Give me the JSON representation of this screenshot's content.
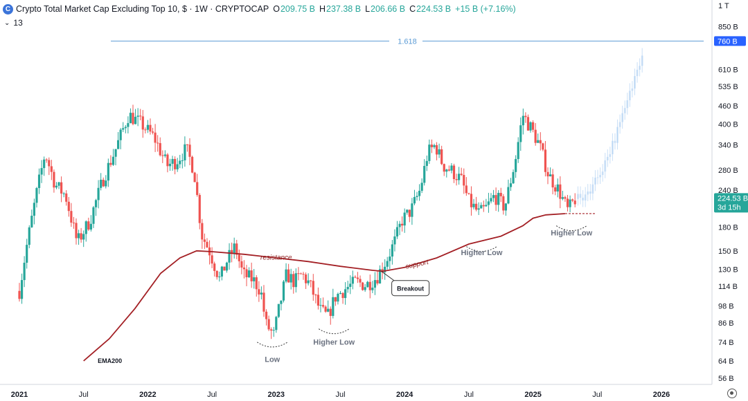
{
  "header": {
    "logo_glyph": "C",
    "title": "Crypto Total Market Cap Excluding Top 10, $ · 1W · CRYPTOCAP",
    "open_label": "O",
    "open_value": "209.75 B",
    "high_label": "H",
    "high_value": "237.38 B",
    "low_label": "L",
    "low_value": "206.66 B",
    "close_label": "C",
    "close_value": "224.53 B",
    "change": "+15 B (+7.16%)",
    "change_color": "#26a69a"
  },
  "indicator": {
    "chevron": "⌄",
    "count": "13"
  },
  "chart_data": {
    "type": "candlestick",
    "title": "Crypto Total Market Cap Excluding Top 10, $ · 1W · CRYPTOCAP",
    "y_scale": "log",
    "ylim": [
      52,
      1000
    ],
    "xlim": [
      2021.0,
      2026.35
    ],
    "y_ticks": [
      "1 T",
      "850 B",
      "760 B",
      "610 B",
      "535 B",
      "460 B",
      "400 B",
      "340 B",
      "280 B",
      "240 B",
      "180 B",
      "150 B",
      "130 B",
      "114 B",
      "98 B",
      "86 B",
      "74 B",
      "64 B",
      "56 B"
    ],
    "x_ticks": [
      {
        "label": "2021",
        "t": 2021.0
      },
      {
        "label": "Jul",
        "t": 2021.5
      },
      {
        "label": "2022",
        "t": 2022.0
      },
      {
        "label": "Jul",
        "t": 2022.5
      },
      {
        "label": "2023",
        "t": 2023.0
      },
      {
        "label": "Jul",
        "t": 2023.5
      },
      {
        "label": "2024",
        "t": 2024.0
      },
      {
        "label": "Jul",
        "t": 2024.5
      },
      {
        "label": "2025",
        "t": 2025.0
      },
      {
        "label": "Jul",
        "t": 2025.5
      },
      {
        "label": "2026",
        "t": 2026.0
      }
    ],
    "up_color": "#26a69a",
    "down_color": "#ef5350",
    "ema_color": "#a31f24",
    "fib_color": "#5b9bd5",
    "price_tags": [
      {
        "text": "760 B",
        "value": 760,
        "color": "#2962ff"
      }
    ],
    "last_price": {
      "value": "224.53 B",
      "countdown": "3d 15h",
      "color": "#26a69a",
      "y": 224.53
    },
    "fib_level": {
      "label": "1.618",
      "value": 760
    },
    "series": [
      {
        "name": "EMA200",
        "points": [
          [
            2021.5,
            64
          ],
          [
            2021.7,
            76
          ],
          [
            2021.9,
            96
          ],
          [
            2022.1,
            126
          ],
          [
            2022.25,
            142
          ],
          [
            2022.38,
            150
          ],
          [
            2022.5,
            149
          ],
          [
            2022.75,
            146
          ],
          [
            2023.0,
            142
          ],
          [
            2023.25,
            138
          ],
          [
            2023.5,
            133
          ],
          [
            2023.75,
            129
          ],
          [
            2023.83,
            128
          ],
          [
            2024.0,
            132
          ],
          [
            2024.25,
            142
          ],
          [
            2024.5,
            158
          ],
          [
            2024.75,
            168
          ],
          [
            2024.92,
            182
          ],
          [
            2025.0,
            193
          ],
          [
            2025.1,
            198
          ],
          [
            2025.25,
            200
          ]
        ]
      }
    ],
    "annotations": [
      {
        "text": "resistance",
        "t": 2023.0,
        "y": 140,
        "style": "red"
      },
      {
        "text": "support",
        "t": 2024.1,
        "y": 133,
        "style": "red"
      },
      {
        "text": "Breakout",
        "t": 2024.04,
        "y": 113,
        "style": "box"
      },
      {
        "text": "EMA200",
        "t": 2021.61,
        "y": 63,
        "style": "label"
      },
      {
        "text": "Low",
        "t": 2022.97,
        "y": 63.5,
        "style": "gray",
        "arc_y": 74
      },
      {
        "text": "Higher Low",
        "t": 2023.45,
        "y": 72.5,
        "style": "gray",
        "arc_y": 82
      },
      {
        "text": "Higher Low",
        "t": 2024.6,
        "y": 145,
        "style": "gray",
        "arc_y": 155
      },
      {
        "text": "Higher Low",
        "t": 2025.3,
        "y": 169,
        "style": "gray",
        "arc_y": 182
      }
    ]
  }
}
